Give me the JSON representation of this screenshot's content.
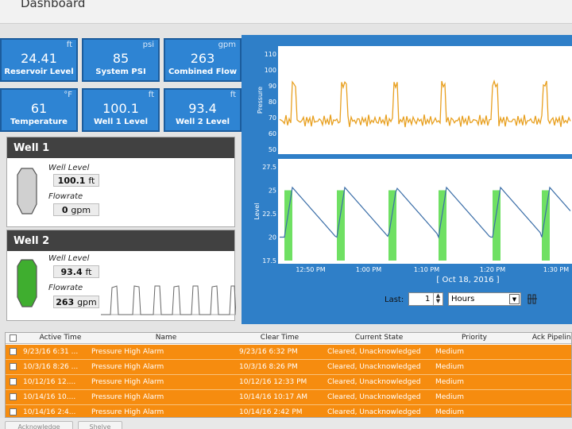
{
  "header": {
    "title": "Dashboard"
  },
  "tiles": [
    {
      "value": "24.41",
      "unit": "ft",
      "label": "Reservoir Level"
    },
    {
      "value": "85",
      "unit": "psi",
      "label": "System PSI"
    },
    {
      "value": "263",
      "unit": "gpm",
      "label": "Combined Flow"
    },
    {
      "value": "61",
      "unit": "°F",
      "label": "Temperature"
    },
    {
      "value": "100.1",
      "unit": "ft",
      "label": "Well 1 Level"
    },
    {
      "value": "93.4",
      "unit": "ft",
      "label": "Well 2 Level"
    }
  ],
  "well1": {
    "title": "Well 1",
    "level_label": "Well Level",
    "level_value": "100.1",
    "level_unit": "ft",
    "flow_label": "Flowrate",
    "flow_value": "0",
    "flow_unit": "gpm",
    "tank_color": "#d0d0d0"
  },
  "well2": {
    "title": "Well 2",
    "level_label": "Well Level",
    "level_value": "93.4",
    "level_unit": "ft",
    "flow_label": "Flowrate",
    "flow_value": "263",
    "flow_unit": "gpm",
    "tank_color": "#3fae2f"
  },
  "chart_data": [
    {
      "type": "line",
      "ylabel": "Pressure",
      "ylim": [
        50,
        110
      ],
      "yticks": [
        "110",
        "100",
        "90",
        "80",
        "70",
        "60",
        "50"
      ],
      "series": [
        {
          "color": "#e8a020"
        }
      ]
    },
    {
      "type": "line",
      "ylabel": "Level",
      "ylim": [
        17.5,
        27.5
      ],
      "yticks": [
        "27.5",
        "25",
        "22.5",
        "20",
        "17.5"
      ],
      "series": [
        {
          "color": "#3b6ea8"
        }
      ],
      "highlight_color": "#6fe063"
    }
  ],
  "xaxis": {
    "ticks": [
      "12:50 PM",
      "1:00 PM",
      "1:10 PM",
      "1:20 PM",
      "1:30 PM"
    ],
    "date_label": "[ Oct 18, 2016 ]"
  },
  "controls": {
    "last_label": "Last:",
    "last_value": "1",
    "unit_value": "Hours"
  },
  "alarms": {
    "columns": [
      "Active Time",
      "Name",
      "Clear Time",
      "Current State",
      "Priority",
      "Ack Pipeline"
    ],
    "rows": [
      [
        "9/23/16 6:31 ...",
        "Pressure High Alarm",
        "9/23/16 6:32 PM",
        "Cleared, Unacknowledged",
        "Medium",
        ""
      ],
      [
        "10/3/16 8:26 ...",
        "Pressure High Alarm",
        "10/3/16 8:26 PM",
        "Cleared, Unacknowledged",
        "Medium",
        ""
      ],
      [
        "10/12/16 12....",
        "Pressure High Alarm",
        "10/12/16 12:33 PM",
        "Cleared, Unacknowledged",
        "Medium",
        ""
      ],
      [
        "10/14/16 10....",
        "Pressure High Alarm",
        "10/14/16 10:17 AM",
        "Cleared, Unacknowledged",
        "Medium",
        ""
      ],
      [
        "10/14/16 2:4...",
        "Pressure High Alarm",
        "10/14/16 2:42 PM",
        "Cleared, Unacknowledged",
        "Medium",
        ""
      ]
    ],
    "row_color": "#f68c0f"
  },
  "footer": {
    "acknowledge_label": "Acknowledge",
    "shelve_label": "Shelve"
  }
}
